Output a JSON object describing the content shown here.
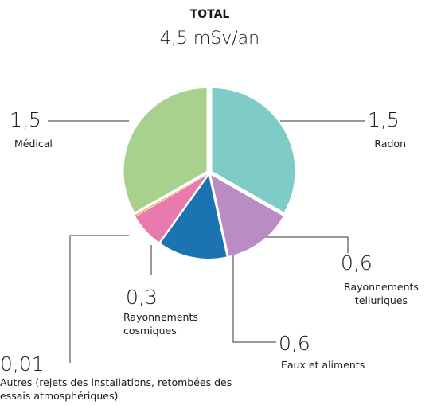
{
  "chart_data": {
    "type": "pie",
    "title": "TOTAL",
    "subtitle": "4,5 mSv/an",
    "categories": [
      "Radon",
      "Rayonnements telluriques",
      "Eaux et aliments",
      "Rayonnements cosmiques",
      "Autres (rejets des installations, retombées des essais atmosphériques)",
      "Médical"
    ],
    "values": [
      1.5,
      0.6,
      0.6,
      0.3,
      0.01,
      1.5
    ],
    "value_labels": [
      "1,5",
      "0,6",
      "0,6",
      "0,3",
      "0,01",
      "1,5"
    ],
    "colors": [
      "#7ecbc8",
      "#b98cc4",
      "#1b74b1",
      "#e97aae",
      "#f39a1e",
      "#a9d18e"
    ]
  }
}
